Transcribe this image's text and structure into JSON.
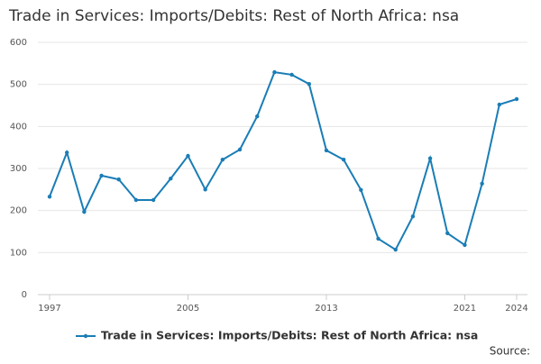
{
  "chart_data": {
    "type": "line",
    "title": "Trade in Services: Imports/Debits: Rest of North Africa: nsa",
    "x": [
      1997,
      1998,
      1999,
      2000,
      2001,
      2002,
      2003,
      2004,
      2005,
      2006,
      2007,
      2008,
      2009,
      2010,
      2011,
      2012,
      2013,
      2014,
      2015,
      2016,
      2017,
      2018,
      2019,
      2020,
      2021,
      2022,
      2023,
      2024
    ],
    "series": [
      {
        "name": "Trade in Services: Imports/Debits: Rest of North Africa: nsa",
        "color": "#1a7db6",
        "values": [
          233,
          338,
          197,
          283,
          274,
          225,
          225,
          276,
          330,
          250,
          321,
          345,
          424,
          529,
          523,
          501,
          343,
          321,
          249,
          133,
          107,
          186,
          324,
          146,
          118,
          264,
          452,
          465
        ]
      }
    ],
    "xlim": [
      1997,
      2024
    ],
    "xticks": [
      1997,
      2005,
      2013,
      2021,
      2024
    ],
    "ylim": [
      0,
      600
    ],
    "yticks": [
      0,
      100,
      200,
      300,
      400,
      500,
      600
    ],
    "grid": true,
    "legend": "bottom",
    "source": "Source:"
  }
}
